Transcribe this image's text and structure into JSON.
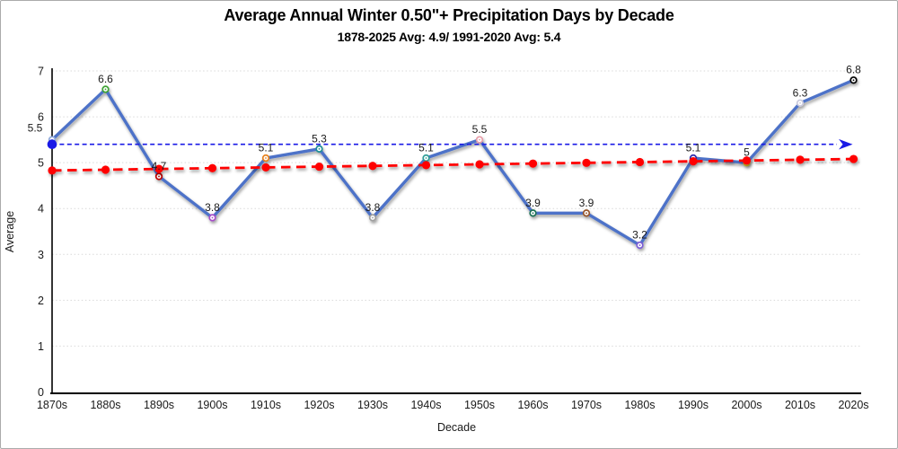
{
  "chart_data": {
    "type": "line",
    "title": "Average Annual Winter 0.50\"+ Precipitation Days by Decade",
    "subtitle": "1878-2025 Avg: 4.9/ 1991-2020 Avg: 5.4",
    "xlabel": "Decade",
    "ylabel": "Average",
    "ylim": [
      0,
      7
    ],
    "yticks": [
      0,
      1,
      2,
      3,
      4,
      5,
      6,
      7
    ],
    "grid": true,
    "legend_position": "none",
    "categories": [
      "1870s",
      "1880s",
      "1890s",
      "1900s",
      "1910s",
      "1920s",
      "1930s",
      "1940s",
      "1950s",
      "1960s",
      "1970s",
      "1980s",
      "1990s",
      "2000s",
      "2010s",
      "2020s"
    ],
    "series": [
      {
        "name": "decade-average-line",
        "type": "line",
        "values": [
          5.5,
          6.6,
          4.7,
          3.8,
          5.1,
          5.3,
          3.8,
          5.1,
          5.5,
          3.9,
          3.9,
          3.2,
          5.1,
          5.0,
          6.3,
          6.8
        ],
        "labels": [
          "5.5",
          "6.6",
          "4.7",
          "3.8",
          "5.1",
          "5.3",
          "3.8",
          "5.1",
          "5.5",
          "3.9",
          "3.9",
          "3.2",
          "5.1",
          "5",
          "6.3",
          "6.8"
        ],
        "color": "#4d72c8",
        "marker_colors": [
          "#8faadc",
          "#3fa435",
          "#c00000",
          "#a64dc8",
          "#e8821e",
          "#1f8e96",
          "#9e9e9e",
          "#2e9e96",
          "#e79da8",
          "#1c7154",
          "#96542a",
          "#7a5cd6",
          "#2a2aae",
          "#e3c51c",
          "#c8c8dc",
          "#000000"
        ]
      },
      {
        "name": "reference-1991-2020-average",
        "type": "constant-line",
        "value": 5.4,
        "style": "short-dash, filled dot at start, arrowhead at right end",
        "color": "#1a1ae6"
      },
      {
        "name": "linear-trend",
        "type": "trend-line",
        "start": 4.83,
        "end": 5.08,
        "style": "long-dash with filled dot markers at each decade",
        "color": "#ff0000"
      }
    ],
    "colors": {
      "gridline": "#d9d9d9",
      "axis": "#000000",
      "text": "#1a1a1a",
      "background": "#ffffff",
      "border": "#ababab"
    }
  }
}
